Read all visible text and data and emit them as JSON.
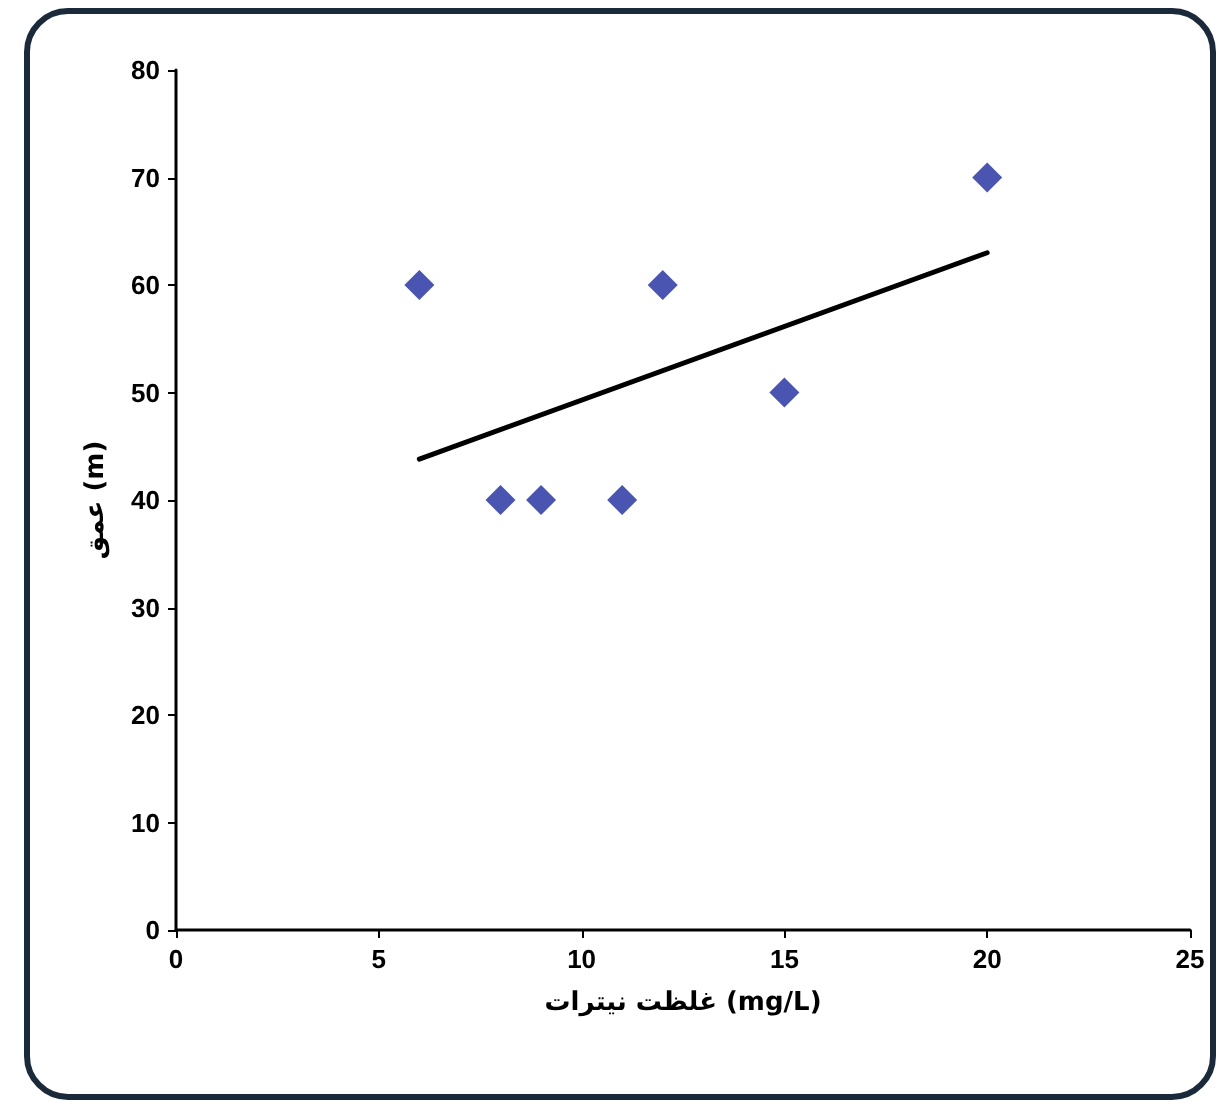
{
  "chart_data": {
    "type": "scatter",
    "xlabel": "غلظت نيترات (mg/L)",
    "ylabel": "عمق (m)",
    "x": [
      6,
      8,
      9,
      11,
      12,
      15,
      20
    ],
    "series": [
      {
        "color": "#1c2a9c",
        "marker": "diamond",
        "values": [
          60,
          40,
          40,
          40,
          60,
          50,
          70
        ]
      },
      {
        "type": "line",
        "color": "#000000",
        "marker": "none",
        "line_style": "solid",
        "x": [
          6,
          20
        ],
        "values": [
          43.8,
          63.0
        ]
      }
    ],
    "xlim": [
      0,
      25
    ],
    "xticks": [
      0,
      5,
      10,
      15,
      20,
      25
    ],
    "ylim": [
      0,
      80
    ],
    "yticks": [
      0,
      10,
      20,
      30,
      40,
      50,
      60,
      70,
      80
    ],
    "grid": false
  }
}
